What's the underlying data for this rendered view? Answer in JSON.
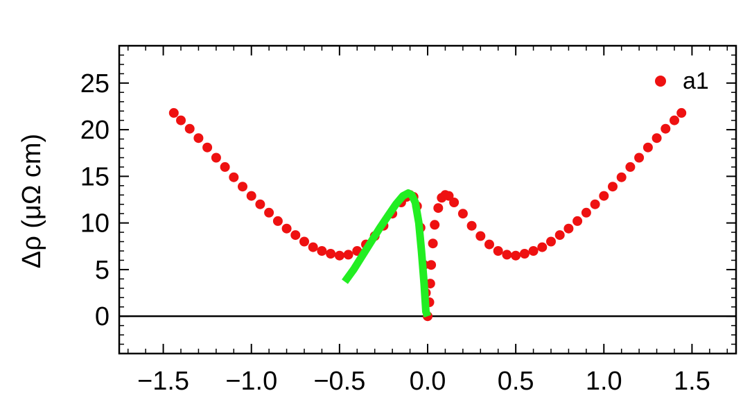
{
  "chart_data": {
    "type": "scatter",
    "title": "",
    "xlabel": "",
    "ylabel": "Δρ (μΩ cm)",
    "xlim": [
      -1.75,
      1.75
    ],
    "ylim": [
      -4,
      29
    ],
    "xticks": [
      -1.5,
      -1.0,
      -0.5,
      0.0,
      0.5,
      1.0,
      1.5
    ],
    "xtick_labels": [
      "−1.5",
      "−1.0",
      "−0.5",
      "0.0",
      "0.5",
      "1.0",
      "1.5"
    ],
    "yticks": [
      0,
      5,
      10,
      15,
      20,
      25
    ],
    "ytick_labels": [
      "0",
      "5",
      "10",
      "15",
      "20",
      "25"
    ],
    "zero_line": true,
    "grid": false,
    "legend_position": "top-right",
    "series": [
      {
        "name": "a1",
        "kind": "scatter",
        "color": "#ee1111",
        "points": [
          [
            -1.44,
            21.8
          ],
          [
            -1.4,
            21.0
          ],
          [
            -1.35,
            20.1
          ],
          [
            -1.3,
            19.1
          ],
          [
            -1.25,
            18.1
          ],
          [
            -1.2,
            17.0
          ],
          [
            -1.15,
            16.0
          ],
          [
            -1.1,
            14.9
          ],
          [
            -1.05,
            13.9
          ],
          [
            -1.0,
            12.9
          ],
          [
            -0.95,
            12.0
          ],
          [
            -0.9,
            11.1
          ],
          [
            -0.85,
            10.2
          ],
          [
            -0.8,
            9.4
          ],
          [
            -0.75,
            8.7
          ],
          [
            -0.7,
            8.0
          ],
          [
            -0.65,
            7.4
          ],
          [
            -0.6,
            7.0
          ],
          [
            -0.55,
            6.7
          ],
          [
            -0.5,
            6.5
          ],
          [
            -0.45,
            6.6
          ],
          [
            -0.4,
            7.0
          ],
          [
            -0.35,
            7.7
          ],
          [
            -0.3,
            8.6
          ],
          [
            -0.25,
            9.7
          ],
          [
            -0.2,
            11.0
          ],
          [
            -0.15,
            12.2
          ],
          [
            -0.12,
            12.8
          ],
          [
            -0.1,
            13.0
          ],
          [
            -0.08,
            12.8
          ],
          [
            -0.06,
            11.8
          ],
          [
            -0.04,
            9.5
          ],
          [
            -0.02,
            5.5
          ],
          [
            -0.01,
            2.5
          ],
          [
            0.0,
            0.0
          ],
          [
            0.01,
            1.5
          ],
          [
            0.015,
            3.5
          ],
          [
            0.02,
            5.5
          ],
          [
            0.03,
            7.8
          ],
          [
            0.04,
            9.8
          ],
          [
            0.06,
            11.6
          ],
          [
            0.08,
            12.7
          ],
          [
            0.1,
            13.0
          ],
          [
            0.12,
            12.9
          ],
          [
            0.15,
            12.2
          ],
          [
            0.2,
            11.0
          ],
          [
            0.25,
            9.7
          ],
          [
            0.3,
            8.6
          ],
          [
            0.35,
            7.7
          ],
          [
            0.4,
            7.0
          ],
          [
            0.45,
            6.6
          ],
          [
            0.5,
            6.5
          ],
          [
            0.55,
            6.7
          ],
          [
            0.6,
            7.0
          ],
          [
            0.65,
            7.4
          ],
          [
            0.7,
            8.0
          ],
          [
            0.75,
            8.7
          ],
          [
            0.8,
            9.4
          ],
          [
            0.85,
            10.2
          ],
          [
            0.9,
            11.1
          ],
          [
            0.95,
            12.0
          ],
          [
            1.0,
            12.9
          ],
          [
            1.05,
            13.9
          ],
          [
            1.1,
            14.9
          ],
          [
            1.15,
            16.0
          ],
          [
            1.2,
            17.0
          ],
          [
            1.25,
            18.1
          ],
          [
            1.3,
            19.1
          ],
          [
            1.35,
            20.1
          ],
          [
            1.4,
            21.0
          ],
          [
            1.44,
            21.8
          ]
        ]
      },
      {
        "name": "",
        "kind": "line",
        "color": "#22ee22",
        "points": [
          [
            -0.47,
            3.7
          ],
          [
            -0.42,
            5.0
          ],
          [
            -0.37,
            6.5
          ],
          [
            -0.32,
            8.0
          ],
          [
            -0.27,
            9.5
          ],
          [
            -0.22,
            10.9
          ],
          [
            -0.18,
            12.0
          ],
          [
            -0.14,
            12.9
          ],
          [
            -0.11,
            13.2
          ],
          [
            -0.09,
            13.0
          ],
          [
            -0.07,
            12.2
          ],
          [
            -0.05,
            10.0
          ],
          [
            -0.035,
            7.0
          ],
          [
            -0.02,
            3.5
          ],
          [
            -0.01,
            0.5
          ],
          [
            0.0,
            0.0
          ]
        ]
      }
    ]
  }
}
